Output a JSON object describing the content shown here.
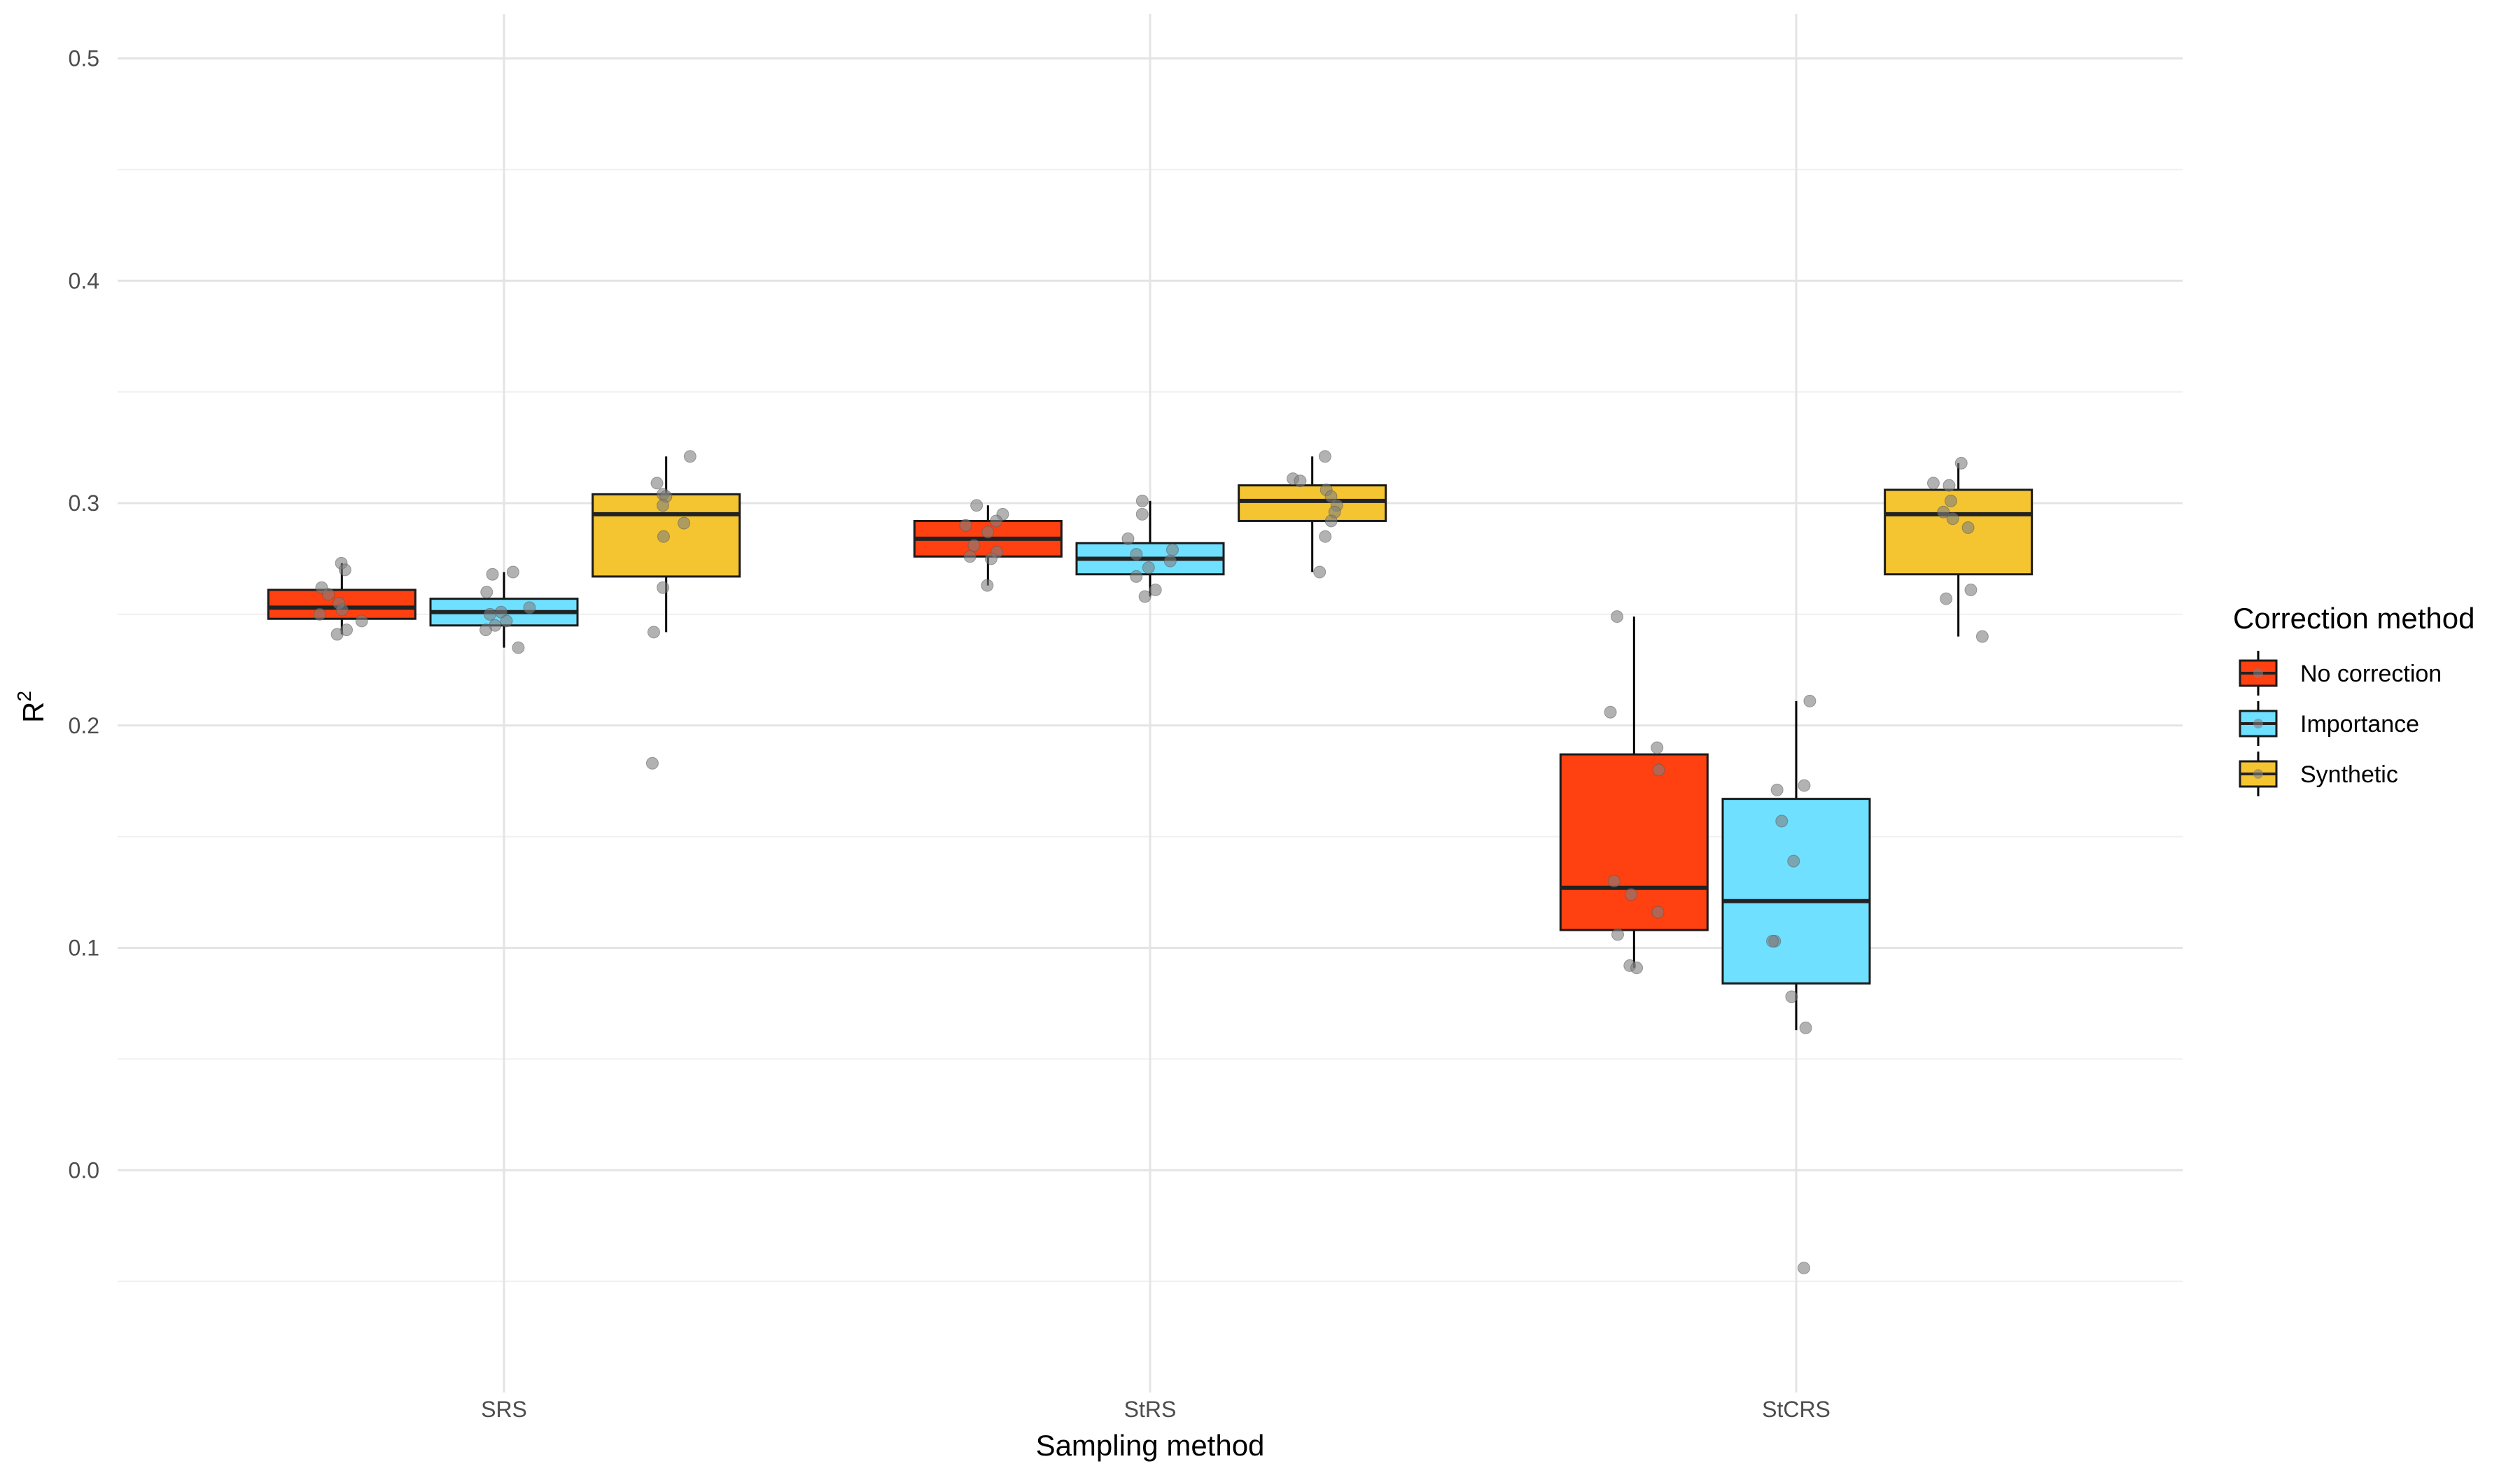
{
  "chart_data": {
    "type": "boxplot",
    "xlabel": "Sampling method",
    "ylabel": "R",
    "ylabel_superscript": "2",
    "categories": [
      "SRS",
      "StRS",
      "StCRS"
    ],
    "ylim": [
      -0.05,
      0.5
    ],
    "yticks": [
      0.0,
      0.1,
      0.2,
      0.3,
      0.4,
      0.5
    ],
    "ytick_labels": [
      "0.0",
      "0.1",
      "0.2",
      "0.3",
      "0.4",
      "0.5"
    ],
    "grid": true,
    "legend": {
      "title": "Correction method",
      "position": "right"
    },
    "series": [
      {
        "name": "No correction",
        "color": "#FF4010",
        "boxes": [
          {
            "category": "SRS",
            "lower_whisker": 0.241,
            "q1": 0.248,
            "median": 0.253,
            "q3": 0.261,
            "upper_whisker": 0.273,
            "points": [
              0.273,
              0.27,
              0.262,
              0.259,
              0.255,
              0.252,
              0.25,
              0.247,
              0.243,
              0.241
            ]
          },
          {
            "category": "StRS",
            "lower_whisker": 0.263,
            "q1": 0.276,
            "median": 0.284,
            "q3": 0.292,
            "upper_whisker": 0.299,
            "points": [
              0.299,
              0.295,
              0.292,
              0.29,
              0.287,
              0.281,
              0.278,
              0.276,
              0.275,
              0.263
            ]
          },
          {
            "category": "StCRS",
            "lower_whisker": 0.091,
            "q1": 0.108,
            "median": 0.127,
            "q3": 0.187,
            "upper_whisker": 0.249,
            "points": [
              0.249,
              0.206,
              0.19,
              0.18,
              0.13,
              0.124,
              0.116,
              0.106,
              0.092,
              0.091
            ]
          }
        ]
      },
      {
        "name": "Importance",
        "color": "#6FE0FF",
        "boxes": [
          {
            "category": "SRS",
            "lower_whisker": 0.235,
            "q1": 0.245,
            "median": 0.251,
            "q3": 0.257,
            "upper_whisker": 0.269,
            "points": [
              0.269,
              0.268,
              0.26,
              0.253,
              0.251,
              0.25,
              0.247,
              0.245,
              0.243,
              0.235
            ]
          },
          {
            "category": "StRS",
            "lower_whisker": 0.258,
            "q1": 0.268,
            "median": 0.275,
            "q3": 0.282,
            "upper_whisker": 0.301,
            "points": [
              0.301,
              0.295,
              0.284,
              0.279,
              0.277,
              0.274,
              0.271,
              0.267,
              0.261,
              0.258
            ]
          },
          {
            "category": "StCRS",
            "lower_whisker": 0.063,
            "q1": 0.084,
            "median": 0.121,
            "q3": 0.167,
            "upper_whisker": 0.211,
            "points": [
              0.211,
              0.173,
              0.171,
              0.157,
              0.139,
              0.103,
              0.103,
              0.078,
              0.064,
              -0.044
            ]
          }
        ]
      },
      {
        "name": "Synthetic",
        "color": "#F5C531",
        "boxes": [
          {
            "category": "SRS",
            "lower_whisker": 0.242,
            "q1": 0.267,
            "median": 0.295,
            "q3": 0.304,
            "upper_whisker": 0.321,
            "points": [
              0.321,
              0.309,
              0.304,
              0.303,
              0.299,
              0.291,
              0.285,
              0.262,
              0.242,
              0.183
            ]
          },
          {
            "category": "StRS",
            "lower_whisker": 0.269,
            "q1": 0.292,
            "median": 0.301,
            "q3": 0.308,
            "upper_whisker": 0.321,
            "points": [
              0.321,
              0.311,
              0.31,
              0.306,
              0.303,
              0.299,
              0.296,
              0.292,
              0.285,
              0.269
            ]
          },
          {
            "category": "StCRS",
            "lower_whisker": 0.24,
            "q1": 0.268,
            "median": 0.295,
            "q3": 0.306,
            "upper_whisker": 0.318,
            "points": [
              0.318,
              0.309,
              0.308,
              0.301,
              0.296,
              0.293,
              0.289,
              0.261,
              0.257,
              0.24
            ]
          }
        ]
      }
    ]
  }
}
